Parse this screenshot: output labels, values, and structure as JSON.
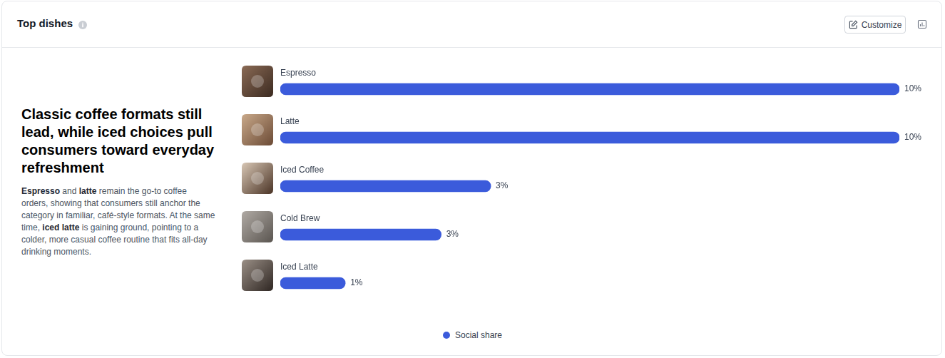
{
  "header": {
    "title": "Top dishes",
    "button": "Customize"
  },
  "insight": {
    "title": "Classic coffee formats still lead, while iced choices pull consumers toward everyday refreshment",
    "body": [
      {
        "text": "Espresso",
        "emphasis": true
      },
      {
        "text": " and "
      },
      {
        "text": "latte",
        "emphasis": true
      },
      {
        "text": " remain the go-to coffee orders, showing that consumers still anchor the category in familiar, café-style formats. At the same time, "
      },
      {
        "text": "iced latte",
        "emphasis": true
      },
      {
        "text": " is gaining ground, pointing to a colder, more casual coffee routine that fits all-day drinking moments."
      }
    ]
  },
  "chart_data": {
    "type": "bar",
    "orientation": "horizontal",
    "categories": [
      "Espresso",
      "Latte",
      "Iced Coffee",
      "Cold Brew",
      "Iced Latte"
    ],
    "series": [
      {
        "name": "Social share",
        "color": "#3b5bdb",
        "values": [
          10,
          10,
          3.4,
          2.6,
          1.05
        ],
        "value_labels": [
          "10%",
          "10%",
          "3%",
          "3%",
          "1%"
        ]
      }
    ],
    "xlim": [
      0,
      10
    ],
    "grid": false,
    "tick_labels": false,
    "data_labels": true,
    "legend": "bottom"
  }
}
